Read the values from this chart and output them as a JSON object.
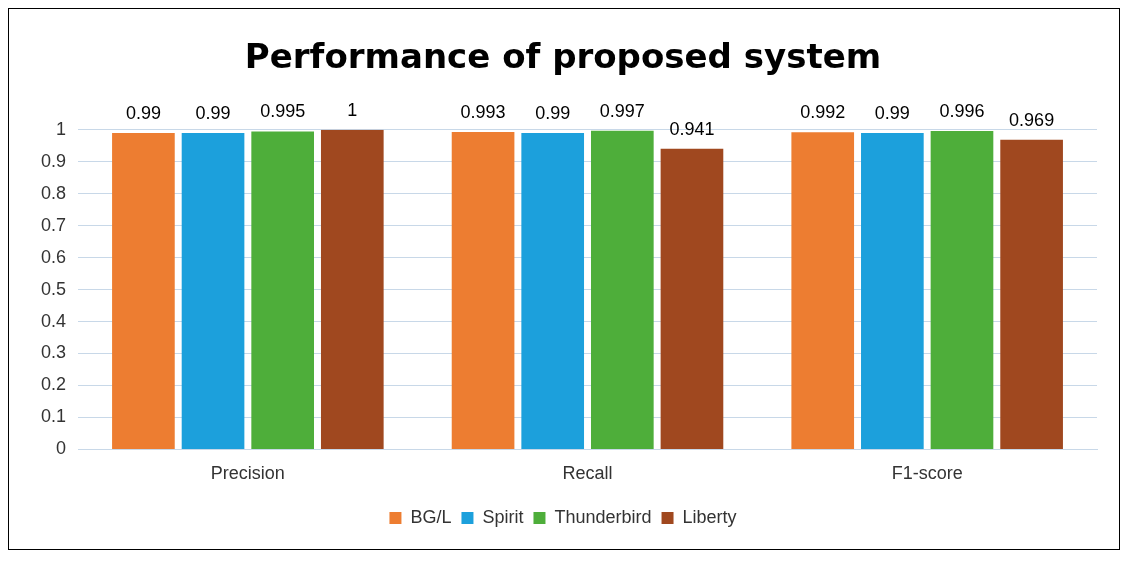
{
  "chart_data": {
    "type": "bar",
    "title": "Performance of proposed system",
    "categories": [
      "Precision",
      "Recall",
      "F1-score"
    ],
    "series": [
      {
        "name": "BG/L",
        "color": "#ed7d31",
        "values": [
          0.99,
          0.993,
          0.992
        ]
      },
      {
        "name": "Spirit",
        "color": "#1ca0dc",
        "values": [
          0.99,
          0.99,
          0.99
        ]
      },
      {
        "name": "Thunderbird",
        "color": "#4eae3a",
        "values": [
          0.995,
          0.997,
          0.996
        ]
      },
      {
        "name": "Liberty",
        "color": "#a0481f",
        "values": [
          1,
          0.941,
          0.969
        ]
      }
    ],
    "ylim": [
      0,
      1
    ],
    "yticks": [
      0,
      0.1,
      0.2,
      0.3,
      0.4,
      0.5,
      0.6,
      0.7,
      0.8,
      0.9,
      1
    ],
    "grid": "y",
    "legend": "bottom",
    "data_labels": true
  }
}
